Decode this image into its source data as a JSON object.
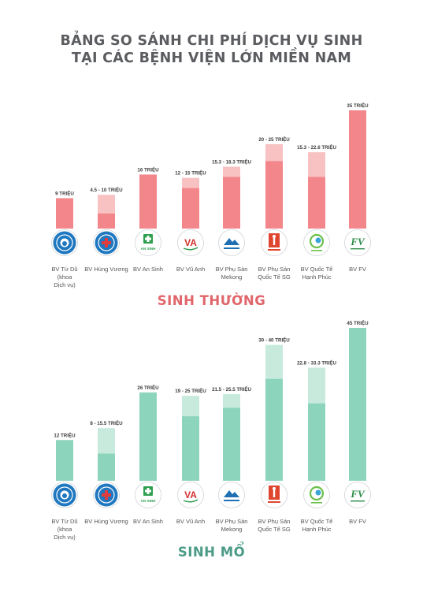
{
  "title_line1": "BẢNG SO SÁNH CHI PHÍ DỊCH VỤ SINH",
  "title_line2": "TẠI CÁC BỆNH VIỆN LỚN MIỀN NAM",
  "hospitals": [
    {
      "name_lines": [
        "BV Từ Dũ",
        "(khoa",
        "Dịch vụ)"
      ],
      "icon": "tu-du-logo-icon"
    },
    {
      "name_lines": [
        "BV Hùng Vương"
      ],
      "icon": "hung-vuong-logo-icon"
    },
    {
      "name_lines": [
        "BV An Sinh"
      ],
      "icon": "an-sinh-logo-icon",
      "logo_text": "AN SINH"
    },
    {
      "name_lines": [
        "BV Vũ Anh"
      ],
      "icon": "vu-anh-logo-icon",
      "logo_text": "VA"
    },
    {
      "name_lines": [
        "BV Phụ Sản",
        "Mekong"
      ],
      "icon": "mekong-logo-icon"
    },
    {
      "name_lines": [
        "BV Phụ Sản",
        "Quốc Tế SG"
      ],
      "icon": "sg-international-logo-icon"
    },
    {
      "name_lines": [
        "BV Quốc Tế",
        "Hạnh Phúc"
      ],
      "icon": "hanh-phuc-logo-icon"
    },
    {
      "name_lines": [
        "BV FV"
      ],
      "icon": "fv-hospital-logo-icon",
      "logo_text": "FV"
    }
  ],
  "colors": {
    "normal_solid": "#f2868a",
    "normal_light": "#f8c2c3",
    "csection_solid": "#8dd4bc",
    "csection_light": "#c7eadd",
    "logo_blue": "#1f78c0",
    "logo_bg": "#e8eaed",
    "label_text": "#3c3c3c",
    "hospital_text": "#555555"
  },
  "chart_data": [
    {
      "type": "bar",
      "title": "SINH THƯỜNG",
      "unit": "triệu",
      "categories": [
        "BV Từ Dũ (khoa Dịch vụ)",
        "BV Hùng Vương",
        "BV An Sinh",
        "BV Vũ Anh",
        "BV Phụ Sản Mekong",
        "BV Phụ Sản Quốc Tế SG",
        "BV Quốc Tế Hạnh Phúc",
        "BV FV"
      ],
      "min": [
        9,
        4.5,
        16,
        12,
        15.3,
        20,
        15.3,
        35
      ],
      "max": [
        9,
        10,
        16,
        15,
        18.3,
        25,
        22.6,
        35
      ],
      "labels": [
        "9 TRIỆU",
        "4.5 - 10 TRIỆU",
        "16 TRIỆU",
        "12 - 15 TRIỆU",
        "15.3 - 18.3 TRIỆU",
        "20 - 25 TRIỆU",
        "15.3 - 22.6 TRIỆU",
        "35 TRIỆU"
      ]
    },
    {
      "type": "bar",
      "title": "SINH MỔ",
      "unit": "triệu",
      "categories": [
        "BV Từ Dũ (khoa Dịch vụ)",
        "BV Hùng Vương",
        "BV An Sinh",
        "BV Vũ Anh",
        "BV Phụ Sản Mekong",
        "BV Phụ Sản Quốc Tế SG",
        "BV Quốc Tế Hạnh Phúc",
        "BV FV"
      ],
      "min": [
        12,
        8,
        26,
        19,
        21.5,
        30,
        22.8,
        45
      ],
      "max": [
        12,
        15.5,
        26,
        25,
        25.5,
        40,
        33.3,
        45
      ],
      "labels": [
        "12 TRIỆU",
        "8 - 15.5 TRIỆU",
        "26 TRIỆU",
        "19 - 25 TRIỆU",
        "21.5 - 25.5 TRIỆU",
        "30 - 40 TRIỆU",
        "22.8 - 33.3 TRIỆU",
        "45 TRIỆU"
      ]
    }
  ]
}
